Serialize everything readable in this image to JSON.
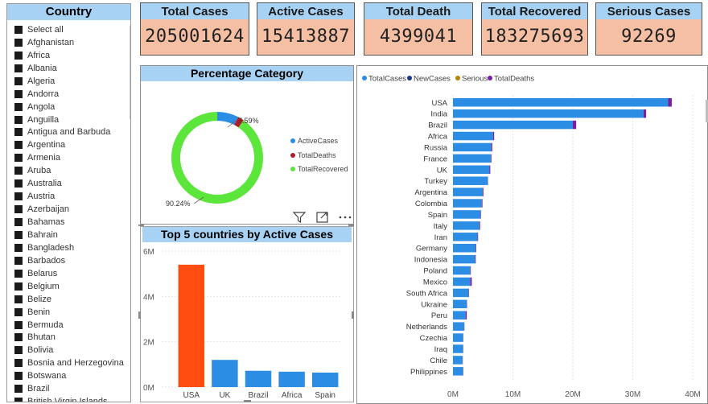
{
  "slicer": {
    "title": "Country",
    "items": [
      "Select all",
      "Afghanistan",
      "Africa",
      "Albania",
      "Algeria",
      "Andorra",
      "Angola",
      "Anguilla",
      "Antigua and Barbuda",
      "Argentina",
      "Armenia",
      "Aruba",
      "Australia",
      "Austria",
      "Azerbaijan",
      "Bahamas",
      "Bahrain",
      "Bangladesh",
      "Barbados",
      "Belarus",
      "Belgium",
      "Belize",
      "Benin",
      "Bermuda",
      "Bhutan",
      "Bolivia",
      "Bosnia and Herzegovina",
      "Botswana",
      "Brazil",
      "British Virgin Islands"
    ]
  },
  "kpis": [
    {
      "label": "Total Cases",
      "value": "205001624"
    },
    {
      "label": "Active Cases",
      "value": "15413887"
    },
    {
      "label": "Total Death",
      "value": "4399041"
    },
    {
      "label": "Total Recovered",
      "value": "183275693"
    },
    {
      "label": "Serious Cases",
      "value": "92269"
    }
  ],
  "colors": {
    "header_blue": "#a7d2f4",
    "kpi_bg": "#f5bfa4",
    "active": "#2b8de3",
    "deaths": "#b01d2b",
    "recovered": "#5ce63c",
    "bar_orange": "#ff4d12",
    "bar_blue": "#2b8de3",
    "new_cases": "#1b3a8c",
    "serious": "#b38600",
    "total_deaths_purple": "#7b1fa2"
  },
  "icons": {
    "filter": "filter-icon",
    "focus": "focus-mode-icon",
    "more": "more-options-icon"
  },
  "chart_data": [
    {
      "type": "pie",
      "title": "Percentage Category",
      "labels": [
        "ActiveCases",
        "TotalDeaths",
        "TotalRecovered"
      ],
      "values": [
        7.59,
        2.17,
        90.24
      ],
      "data_labels": [
        "7.59%",
        "",
        "90.24%"
      ],
      "legend": "right"
    },
    {
      "type": "bar",
      "title": "Top 5 countries by Active Cases",
      "categories": [
        "USA",
        "UK",
        "Brazil",
        "Africa",
        "Spain"
      ],
      "values": [
        5400000,
        1200000,
        720000,
        680000,
        640000
      ],
      "ylim": [
        0,
        6000000
      ],
      "yticks": [
        "0M",
        "2M",
        "4M",
        "6M"
      ],
      "highlight": "USA"
    },
    {
      "type": "bar",
      "orientation": "horizontal",
      "stacked": true,
      "legend_position": "top-left",
      "series_names": [
        "TotalCases",
        "NewCases",
        "Serious",
        "TotalDeaths"
      ],
      "categories": [
        "USA",
        "India",
        "Brazil",
        "Africa",
        "Russia",
        "France",
        "UK",
        "Turkey",
        "Argentina",
        "Colombia",
        "Spain",
        "Italy",
        "Iran",
        "Germany",
        "Indonesia",
        "Poland",
        "Mexico",
        "South Africa",
        "Ukraine",
        "Peru",
        "Netherlands",
        "Czechia",
        "Iraq",
        "Chile",
        "Philippines"
      ],
      "series": [
        {
          "name": "TotalCases",
          "values": [
            35900000,
            31800000,
            20000000,
            6700000,
            6400000,
            6300000,
            6100000,
            5800000,
            5000000,
            4800000,
            4600000,
            4400000,
            4100000,
            3800000,
            3700000,
            2900000,
            2900000,
            2600000,
            2300000,
            2100000,
            1900000,
            1700000,
            1700000,
            1600000,
            1700000
          ]
        },
        {
          "name": "TotalDeaths",
          "values": [
            600000,
            420000,
            560000,
            170000,
            160000,
            110000,
            130000,
            50000,
            100000,
            120000,
            80000,
            130000,
            90000,
            90000,
            100000,
            75000,
            240000,
            75000,
            55000,
            200000,
            18000,
            30000,
            20000,
            37000,
            30000
          ]
        }
      ],
      "xlim": [
        0,
        40000000
      ],
      "xticks": [
        "0M",
        "10M",
        "20M",
        "30M",
        "40M"
      ]
    }
  ]
}
